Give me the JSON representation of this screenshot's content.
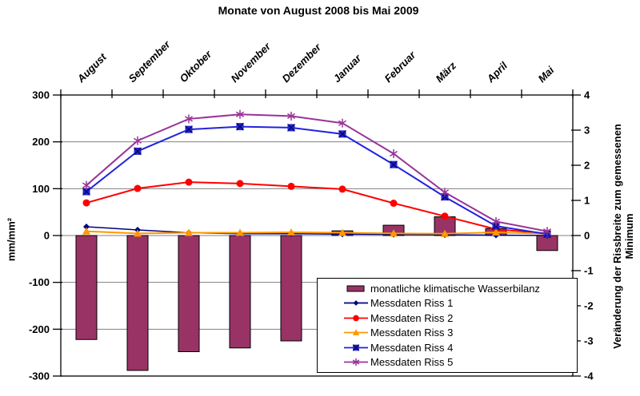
{
  "chart_data": {
    "type": "combo-bar-line",
    "title": "Monate von August 2008 bis Mai 2009",
    "categories": [
      "August",
      "September",
      "Oktober",
      "November",
      "Dezember",
      "Januar",
      "Februar",
      "März",
      "April",
      "Mai"
    ],
    "left_axis": {
      "label": "mm/mm²",
      "min": -300,
      "max": 300,
      "step": 100,
      "ticks": [
        "300",
        "200",
        "100",
        "0",
        "-100",
        "-200",
        "-300"
      ]
    },
    "right_axis": {
      "label_line1": "Veränderung der Rissbreite zum gemessenen",
      "label_line2": "Minimum",
      "min": -4,
      "max": 4,
      "step": 1,
      "ticks": [
        "4",
        "3",
        "2",
        "1",
        "0",
        "-1",
        "-2",
        "-3",
        "-4"
      ]
    },
    "grid": "horizontal",
    "grid_color": "#808080",
    "frame_color": "#000000",
    "background": "#ffffff",
    "legend_position": "inside-bottom-right",
    "bar_series": {
      "name": "monatliche klimatische Wasserbilanz",
      "axis": "left",
      "color": "#993366",
      "border_color": "#000000",
      "values": [
        -222,
        -288,
        -248,
        -240,
        -225,
        10,
        22,
        40,
        15,
        -32
      ]
    },
    "line_series": [
      {
        "name": "Messdaten Riss 1",
        "axis": "right",
        "color": "#000080",
        "marker": "diamond",
        "values": [
          0.25,
          0.16,
          0.08,
          0.05,
          0.05,
          0.04,
          0.03,
          0.02,
          0.01,
          0.0
        ]
      },
      {
        "name": "Messdaten Riss 2",
        "axis": "right",
        "color": "#FF0000",
        "marker": "circle",
        "values": [
          0.93,
          1.34,
          1.52,
          1.48,
          1.4,
          1.32,
          0.92,
          0.55,
          0.18,
          0.06
        ]
      },
      {
        "name": "Messdaten Riss 3",
        "axis": "right",
        "color": "#FF9900",
        "marker": "triangle",
        "values": [
          0.12,
          0.06,
          0.08,
          0.08,
          0.09,
          0.08,
          0.06,
          0.05,
          0.09,
          0.05
        ]
      },
      {
        "name": "Messdaten Riss 4",
        "axis": "right",
        "color": "#2222DD",
        "marker": "square-x",
        "values": [
          1.25,
          2.4,
          3.02,
          3.1,
          3.07,
          2.89,
          2.02,
          1.1,
          0.27,
          0.04
        ]
      },
      {
        "name": "Messdaten Riss 5",
        "axis": "right",
        "color": "#993399",
        "marker": "asterisk",
        "values": [
          1.43,
          2.7,
          3.32,
          3.45,
          3.4,
          3.2,
          2.33,
          1.23,
          0.4,
          0.12
        ]
      }
    ]
  }
}
